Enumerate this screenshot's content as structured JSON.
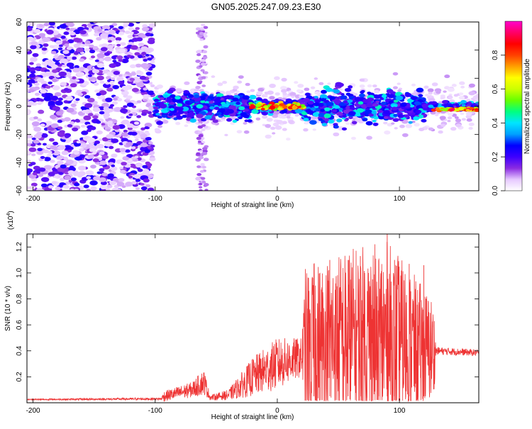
{
  "title": "GN05.2025.247.09.23.E30",
  "colors": {
    "snr_line": "#ee3333",
    "axis": "#000000",
    "background": "#ffffff"
  },
  "chart_data": [
    {
      "type": "heatmap",
      "name": "spectrogram",
      "xlabel": "Height of straight line (km)",
      "ylabel": "Frequency (Hz)",
      "xlim": [
        -205,
        165
      ],
      "ylim": [
        -60,
        60
      ],
      "xticks": [
        -200,
        -100,
        0,
        100
      ],
      "xtick_labels": [
        "-200",
        "-100",
        "0",
        "100"
      ],
      "yticks": [
        60,
        40,
        20,
        0,
        -20,
        -40,
        -60
      ],
      "ytick_labels": [
        "60",
        "40",
        "20",
        "0",
        "-20",
        "-40",
        "-60"
      ],
      "colorbar": {
        "label": "Normalized spectral amplitude",
        "range": [
          0.0,
          1.0
        ],
        "ticks": [
          0.0,
          0.2,
          0.4,
          0.6,
          0.8
        ],
        "tick_labels": [
          "0.0",
          "0.2",
          "0.4",
          "0.6",
          "0.8"
        ],
        "stops": [
          "#ffffff",
          "#e6c8ff",
          "#8a2be2",
          "#3d00ff",
          "#0000ff",
          "#00a0ff",
          "#00e5ff",
          "#00ff80",
          "#66ff00",
          "#ccff00",
          "#ffff00",
          "#ffa000",
          "#ff4000",
          "#ff0000",
          "#ff0066",
          "#ff00cc"
        ]
      },
      "regions": [
        {
          "x": [
            -205,
            -102
          ],
          "f_band": [
            -60,
            60
          ],
          "intensity": 0.18,
          "note": "noise"
        },
        {
          "x": [
            -100,
            165
          ],
          "f_band": [
            -20,
            20
          ],
          "intensity": 0.25,
          "note": "main band"
        },
        {
          "x": [
            -65,
            -58
          ],
          "f_band": [
            -60,
            60
          ],
          "intensity": 0.1,
          "note": "vertical streak"
        },
        {
          "x": [
            -20,
            20
          ],
          "f_band": [
            -4,
            4
          ],
          "intensity": 0.8,
          "note": "peak near 0 km"
        },
        {
          "x": [
            130,
            165
          ],
          "f_band": [
            -4,
            0
          ],
          "intensity": 0.95,
          "note": "right edge"
        }
      ]
    },
    {
      "type": "line",
      "name": "snr",
      "xlabel": "Height of straight line (km)",
      "ylabel": "SNR (10 * v/v)",
      "scale_label": "(x10",
      "scale_exp": "4",
      "scale_close": ")",
      "xlim": [
        -205,
        165
      ],
      "ylim": [
        0,
        1.3
      ],
      "xticks": [
        -200,
        -100,
        0,
        100
      ],
      "xtick_labels": [
        "-200",
        "-100",
        "0",
        "100"
      ],
      "yticks": [
        0.2,
        0.4,
        0.6,
        0.8,
        1.0,
        1.2
      ],
      "ytick_labels": [
        "0.2",
        "0.4",
        "0.6",
        "0.8",
        "1.0",
        "1.2"
      ],
      "profile": [
        {
          "x": -205,
          "base": 0.025,
          "amp": 0.005
        },
        {
          "x": -95,
          "base": 0.03,
          "amp": 0.01
        },
        {
          "x": -93,
          "base": 0.05,
          "amp": 0.04
        },
        {
          "x": -70,
          "base": 0.1,
          "amp": 0.06
        },
        {
          "x": -60,
          "base": 0.16,
          "amp": 0.1
        },
        {
          "x": -55,
          "base": 0.04,
          "amp": 0.02
        },
        {
          "x": -40,
          "base": 0.06,
          "amp": 0.04
        },
        {
          "x": -20,
          "base": 0.2,
          "amp": 0.15
        },
        {
          "x": 0,
          "base": 0.3,
          "amp": 0.2
        },
        {
          "x": 20,
          "base": 0.35,
          "amp": 0.15
        },
        {
          "x": 23,
          "base": 0.45,
          "amp": 0.6
        },
        {
          "x": 60,
          "base": 0.5,
          "amp": 0.7
        },
        {
          "x": 90,
          "base": 0.5,
          "amp": 0.75
        },
        {
          "x": 128,
          "base": 0.4,
          "amp": 0.4
        },
        {
          "x": 130,
          "base": 0.4,
          "amp": 0.03
        },
        {
          "x": 165,
          "base": 0.385,
          "amp": 0.025
        }
      ],
      "spikes": [
        {
          "x": 30,
          "y": 1.07
        },
        {
          "x": 43,
          "y": 1.1
        },
        {
          "x": 58,
          "y": 1.1
        },
        {
          "x": 68,
          "y": 1.13
        },
        {
          "x": 83,
          "y": 1.1
        },
        {
          "x": 90,
          "y": 1.35
        },
        {
          "x": 96,
          "y": 1.1
        },
        {
          "x": 108,
          "y": 1.07
        },
        {
          "x": 120,
          "y": 1.06
        }
      ]
    }
  ]
}
